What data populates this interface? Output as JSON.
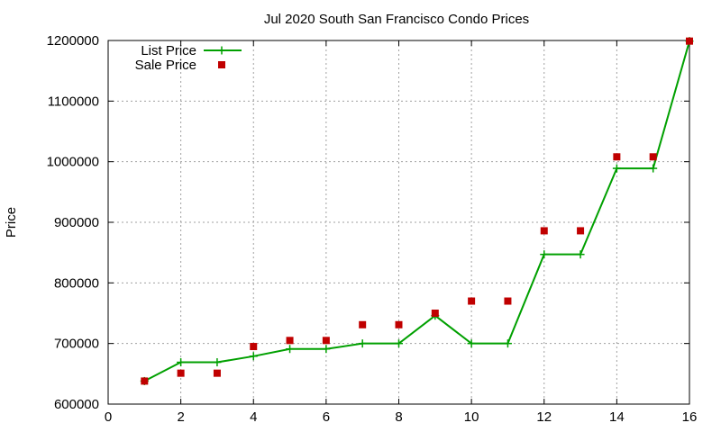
{
  "chart_data": {
    "type": "line",
    "title": "Jul 2020 South San Francisco Condo Prices",
    "xlabel": "",
    "ylabel": "Price",
    "xlim": [
      0,
      16
    ],
    "ylim": [
      600000,
      1200000
    ],
    "x_ticks": [
      0,
      2,
      4,
      6,
      8,
      10,
      12,
      14,
      16
    ],
    "y_ticks": [
      600000,
      700000,
      800000,
      900000,
      1000000,
      1100000,
      1200000
    ],
    "grid": true,
    "legend_position": "top-left",
    "series": [
      {
        "name": "List Price",
        "style": "line-with-plus-markers",
        "color": "#00a000",
        "x": [
          1,
          2,
          3,
          4,
          5,
          6,
          7,
          8,
          9,
          10,
          11,
          12,
          13,
          14,
          15,
          16
        ],
        "y": [
          638000,
          669000,
          669000,
          679000,
          691000,
          691000,
          700000,
          700000,
          746000,
          700000,
          700000,
          847000,
          847000,
          989000,
          989000,
          1199000
        ]
      },
      {
        "name": "Sale Price",
        "style": "square-markers",
        "color": "#c00000",
        "x": [
          1,
          2,
          3,
          4,
          5,
          6,
          7,
          8,
          9,
          10,
          11,
          12,
          13,
          14,
          15,
          16
        ],
        "y": [
          638000,
          651000,
          651000,
          695000,
          705000,
          705000,
          731000,
          731000,
          750000,
          770000,
          770000,
          886000,
          886000,
          1008000,
          1008000,
          1199000
        ]
      }
    ]
  }
}
